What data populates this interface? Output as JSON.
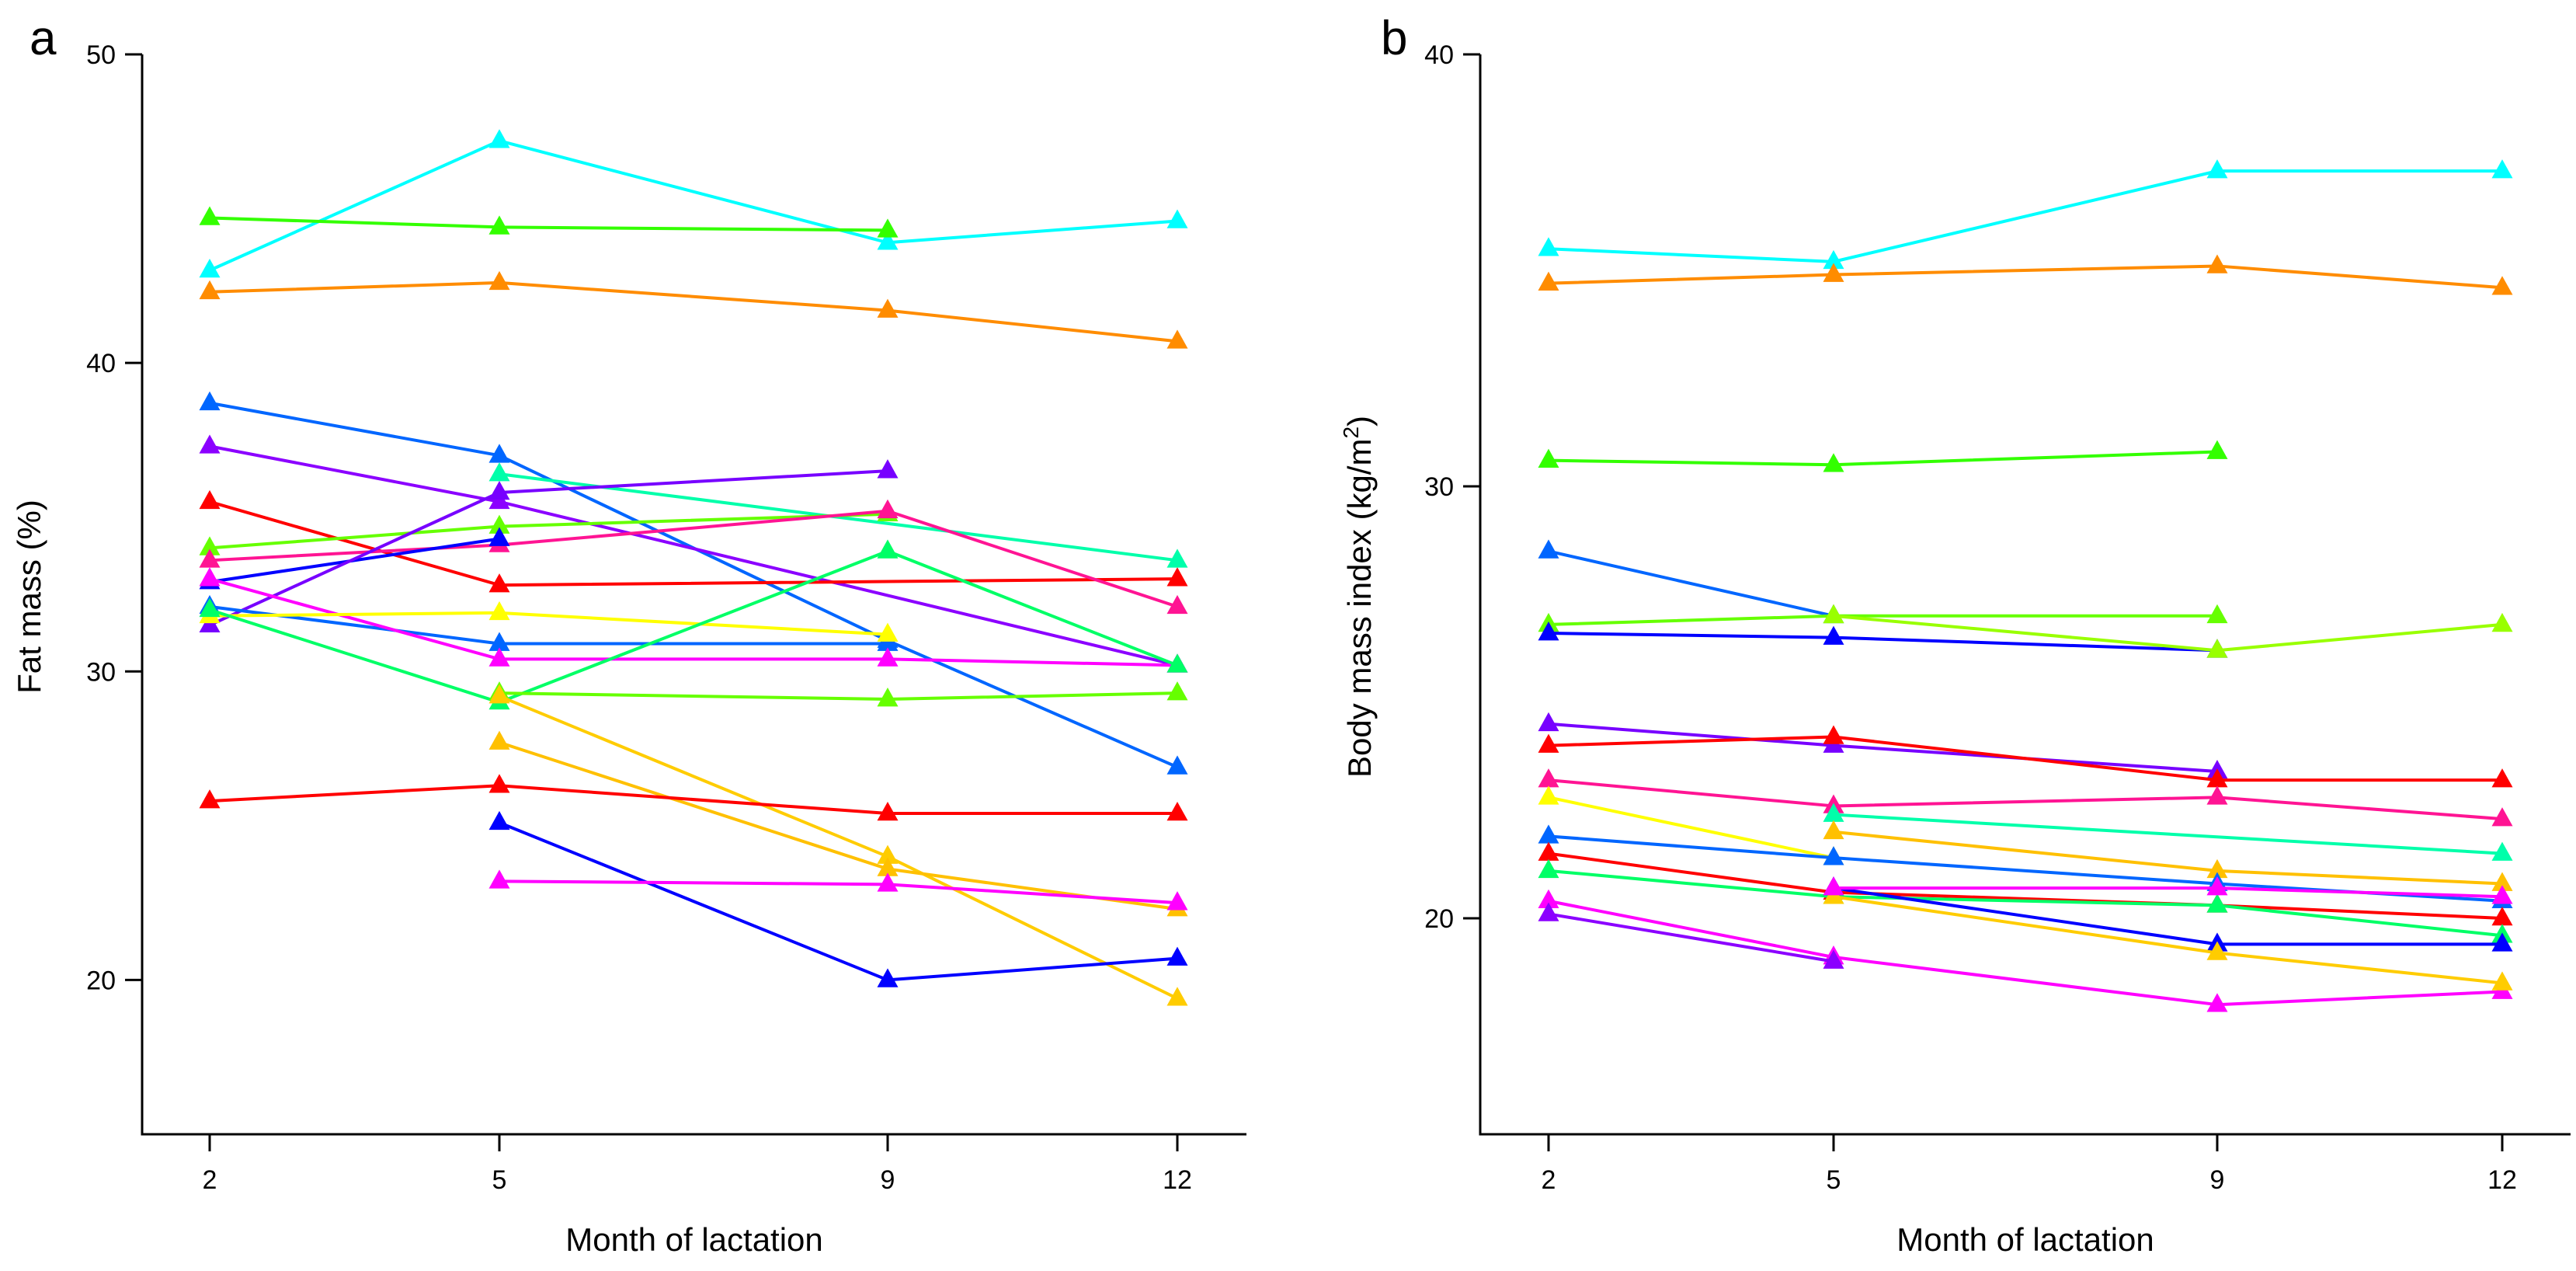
{
  "chart_data": [
    {
      "type": "line",
      "panel_label": "a",
      "xlabel": "Month of lactation",
      "ylabel": "Fat mass (%)",
      "x": [
        2,
        5,
        9,
        12
      ],
      "x_ticks": [
        2,
        5,
        9,
        12
      ],
      "x_tick_labels": [
        "2",
        "5",
        "9",
        "12"
      ],
      "y_ticks": [
        20,
        30,
        40,
        50
      ],
      "y_tick_labels": [
        "20",
        "30",
        "40",
        "50"
      ],
      "ylim": [
        15,
        50
      ],
      "grid": false,
      "series": [
        {
          "color": "#00FFFF",
          "values": [
            43.0,
            47.2,
            43.9,
            44.6
          ]
        },
        {
          "color": "#33FF00",
          "values": [
            44.7,
            44.4,
            44.3,
            null
          ]
        },
        {
          "color": "#FF8C00",
          "values": [
            42.3,
            42.6,
            41.7,
            40.7
          ]
        },
        {
          "color": "#0066FF",
          "values": [
            38.7,
            37.0,
            31.0,
            26.9
          ]
        },
        {
          "color": "#8B00FF",
          "values": [
            37.3,
            35.5,
            null,
            30.2
          ]
        },
        {
          "color": "#FF0000",
          "values": [
            35.5,
            32.8,
            null,
            33.0
          ]
        },
        {
          "color": "#00FFAA",
          "values": [
            null,
            36.4,
            null,
            33.6
          ]
        },
        {
          "color": "#66FF00",
          "values": [
            34.0,
            34.7,
            35.1,
            null
          ]
        },
        {
          "color": "#FF1493",
          "values": [
            33.6,
            34.1,
            35.2,
            32.1
          ]
        },
        {
          "color": "#0000FF",
          "values": [
            32.9,
            34.3,
            null,
            null
          ]
        },
        {
          "color": "#7700FF",
          "values": [
            31.5,
            35.8,
            36.5,
            null
          ]
        },
        {
          "color": "#0066FF",
          "values": [
            32.1,
            30.9,
            30.9,
            null
          ]
        },
        {
          "color": "#FF00FF",
          "values": [
            33.0,
            30.4,
            30.4,
            30.2
          ]
        },
        {
          "color": "#FFFF00",
          "values": [
            31.8,
            31.9,
            31.2,
            null
          ]
        },
        {
          "color": "#00FF66",
          "values": [
            32.0,
            29.0,
            33.9,
            30.2
          ]
        },
        {
          "color": "#66FF00",
          "values": [
            null,
            29.3,
            29.1,
            29.3
          ]
        },
        {
          "color": "#FFCC00",
          "values": [
            null,
            29.2,
            24.0,
            19.4
          ]
        },
        {
          "color": "#FFC000",
          "values": [
            null,
            27.7,
            23.6,
            22.3
          ]
        },
        {
          "color": "#FF0000",
          "values": [
            25.8,
            26.3,
            25.4,
            25.4
          ]
        },
        {
          "color": "#0000FF",
          "values": [
            null,
            25.1,
            20.0,
            20.7
          ]
        },
        {
          "color": "#FF00FF",
          "values": [
            null,
            23.2,
            23.1,
            22.5
          ]
        }
      ]
    },
    {
      "type": "line",
      "panel_label": "b",
      "xlabel": "Month of lactation",
      "ylabel_main": "Body mass index (kg/m",
      "ylabel_sup": "2",
      "ylabel_end": ")",
      "x": [
        2,
        5,
        9,
        12
      ],
      "x_ticks": [
        2,
        5,
        9,
        12
      ],
      "x_tick_labels": [
        "2",
        "5",
        "9",
        "12"
      ],
      "y_ticks": [
        20,
        30,
        40
      ],
      "y_tick_labels": [
        "20",
        "30",
        "40"
      ],
      "ylim": [
        15,
        40
      ],
      "grid": false,
      "series": [
        {
          "color": "#00FFFF",
          "values": [
            35.5,
            35.2,
            37.3,
            37.3
          ]
        },
        {
          "color": "#FF8C00",
          "values": [
            34.7,
            34.9,
            35.1,
            34.6
          ]
        },
        {
          "color": "#33FF00",
          "values": [
            30.6,
            30.5,
            30.8,
            null
          ]
        },
        {
          "color": "#0066FF",
          "values": [
            28.5,
            27.0,
            null,
            null
          ]
        },
        {
          "color": "#66FF00",
          "values": [
            26.8,
            27.0,
            27.0,
            null
          ]
        },
        {
          "color": "#0000FF",
          "values": [
            26.6,
            26.5,
            26.2,
            null
          ]
        },
        {
          "color": "#99FF00",
          "values": [
            null,
            27.0,
            26.2,
            26.8
          ]
        },
        {
          "color": "#7700FF",
          "values": [
            24.5,
            24.0,
            23.4,
            null
          ]
        },
        {
          "color": "#FF0000",
          "values": [
            24.0,
            24.2,
            23.2,
            23.2
          ]
        },
        {
          "color": "#FF1493",
          "values": [
            23.2,
            22.6,
            22.8,
            22.3
          ]
        },
        {
          "color": "#FFFF00",
          "values": [
            22.8,
            21.4,
            null,
            null
          ]
        },
        {
          "color": "#00FFAA",
          "values": [
            null,
            22.4,
            null,
            21.5
          ]
        },
        {
          "color": "#FFC000",
          "values": [
            null,
            22.0,
            21.1,
            20.8
          ]
        },
        {
          "color": "#0066FF",
          "values": [
            21.9,
            21.4,
            20.8,
            20.4
          ]
        },
        {
          "color": "#FF0000",
          "values": [
            21.5,
            20.6,
            20.3,
            20.0
          ]
        },
        {
          "color": "#00FF66",
          "values": [
            21.1,
            20.5,
            20.3,
            19.6
          ]
        },
        {
          "color": "#0000FF",
          "values": [
            null,
            20.7,
            19.4,
            19.4
          ]
        },
        {
          "color": "#FF00FF",
          "values": [
            20.4,
            19.1,
            18.0,
            18.3
          ]
        },
        {
          "color": "#8B00FF",
          "values": [
            20.1,
            19.0,
            null,
            null
          ]
        },
        {
          "color": "#FFCC00",
          "values": [
            null,
            20.5,
            19.2,
            18.5
          ]
        },
        {
          "color": "#FF00FF",
          "values": [
            null,
            20.7,
            20.7,
            20.5
          ]
        }
      ]
    }
  ]
}
